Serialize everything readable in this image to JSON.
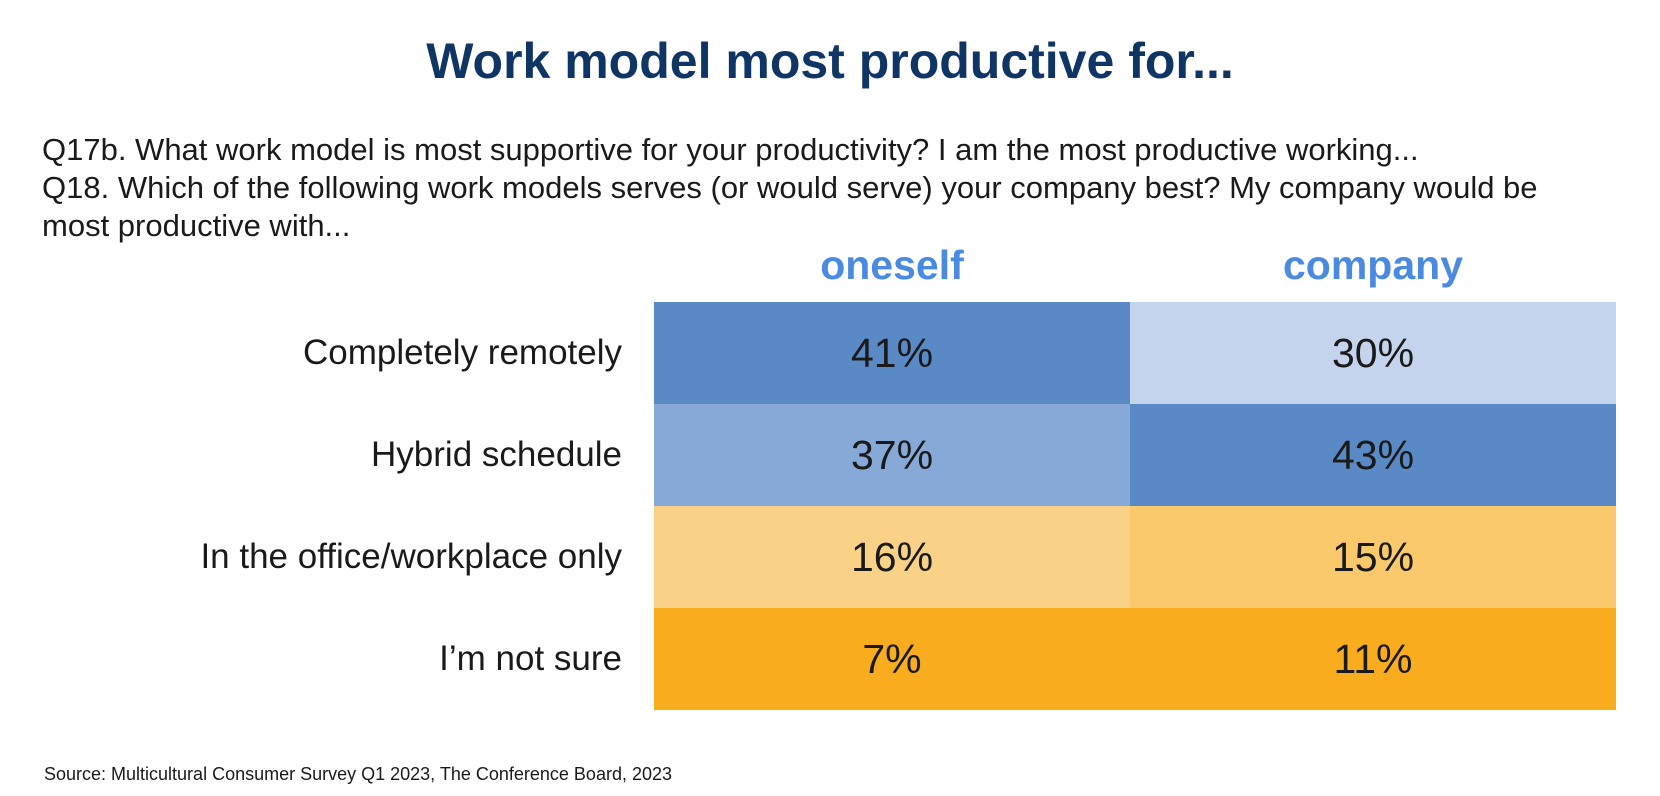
{
  "title": "Work model most productive for...",
  "questions": [
    "Q17b. What work model is most supportive for your productivity? I am the most productive working...",
    "Q18. Which of the following work models serves (or would serve) your company best? My company would be most productive with..."
  ],
  "source": "Source: Multicultural Consumer Survey Q1 2023, The Conference Board, 2023",
  "chart_data": {
    "type": "table",
    "title": "Work model most productive for...",
    "columns": [
      "oneself",
      "company"
    ],
    "rows": [
      "Completely remotely",
      "Hybrid schedule",
      "In the office/workplace only",
      "I’m not sure"
    ],
    "series": [
      {
        "name": "oneself",
        "values": [
          41,
          37,
          16,
          7
        ]
      },
      {
        "name": "company",
        "values": [
          30,
          43,
          15,
          11
        ]
      }
    ],
    "labels": [
      [
        "41%",
        "30%"
      ],
      [
        "37%",
        "43%"
      ],
      [
        "16%",
        "15%"
      ],
      [
        "7%",
        "11%"
      ]
    ],
    "colors": [
      [
        "#5a8ac6",
        "#c5d4ed"
      ],
      [
        "#86a9d8",
        "#5a8ac6"
      ],
      [
        "#f9d187",
        "#f9c96b"
      ],
      [
        "#f9ad1e",
        "#f9ad1e"
      ]
    ]
  }
}
